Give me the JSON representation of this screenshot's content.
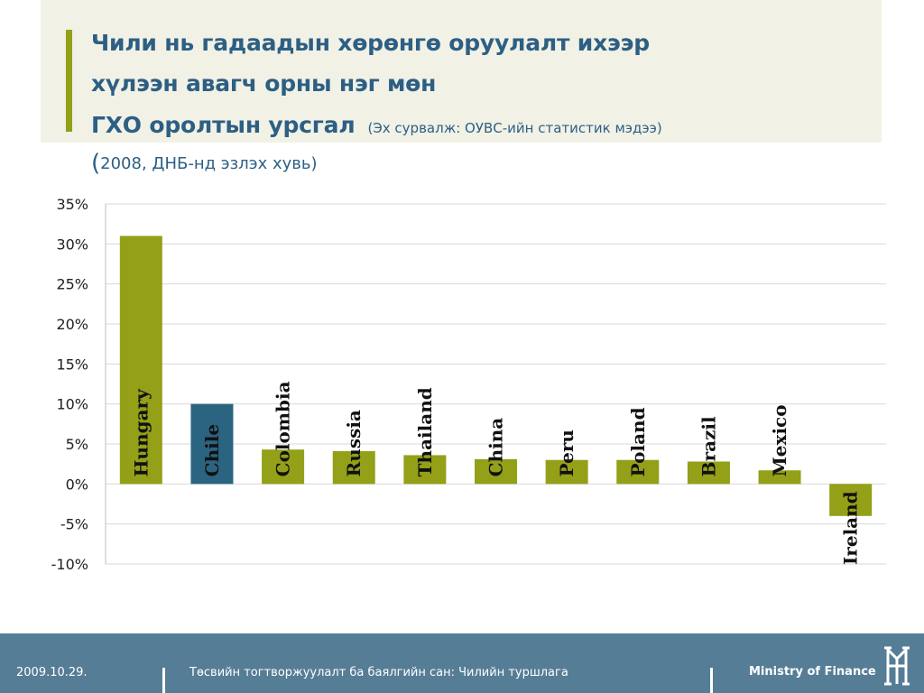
{
  "header": {
    "title_line1": "Чили нь гадаадын хөрөнгө оруулалт ихээр",
    "title_line2": "хүлээн авагч орны нэг мөн",
    "title_line3": "ГХО оролтын урсгал",
    "source": "(Эх сурвалж: ОУВС-ийн статистик мэдээ)",
    "subtitle_paren": "(",
    "subtitle_text": "2008, ДНБ-нд эзлэх хувь)"
  },
  "chart_data": {
    "type": "bar",
    "categories": [
      "Hungary",
      "Chile",
      "Colombia",
      "Russia",
      "Thailand",
      "China",
      "Peru",
      "Poland",
      "Brazil",
      "Mexico",
      "Ireland"
    ],
    "values": [
      31.0,
      10.0,
      4.3,
      4.1,
      3.6,
      3.1,
      3.0,
      3.0,
      2.8,
      1.7,
      -4.0
    ],
    "ylim": [
      -10,
      35
    ],
    "yticks": [
      35,
      30,
      25,
      20,
      15,
      10,
      5,
      0,
      -5,
      -10
    ],
    "ytick_labels": [
      "35%",
      "30%",
      "25%",
      "20%",
      "15%",
      "10%",
      "5%",
      "0%",
      "-5%",
      "-10%"
    ],
    "grid": true,
    "labels_inside_bars": true,
    "colors": {
      "default": "#93a018",
      "highlight": "#2b6480",
      "highlight_category": "Chile"
    }
  },
  "footer": {
    "date": "2009.10.29.",
    "center_text": "Төсвийн тогтворжуулалт ба баялгийн сан: Чилийн туршлага",
    "brand": "Ministry of Finance",
    "logo_icon": "ministry-monogram-icon"
  }
}
